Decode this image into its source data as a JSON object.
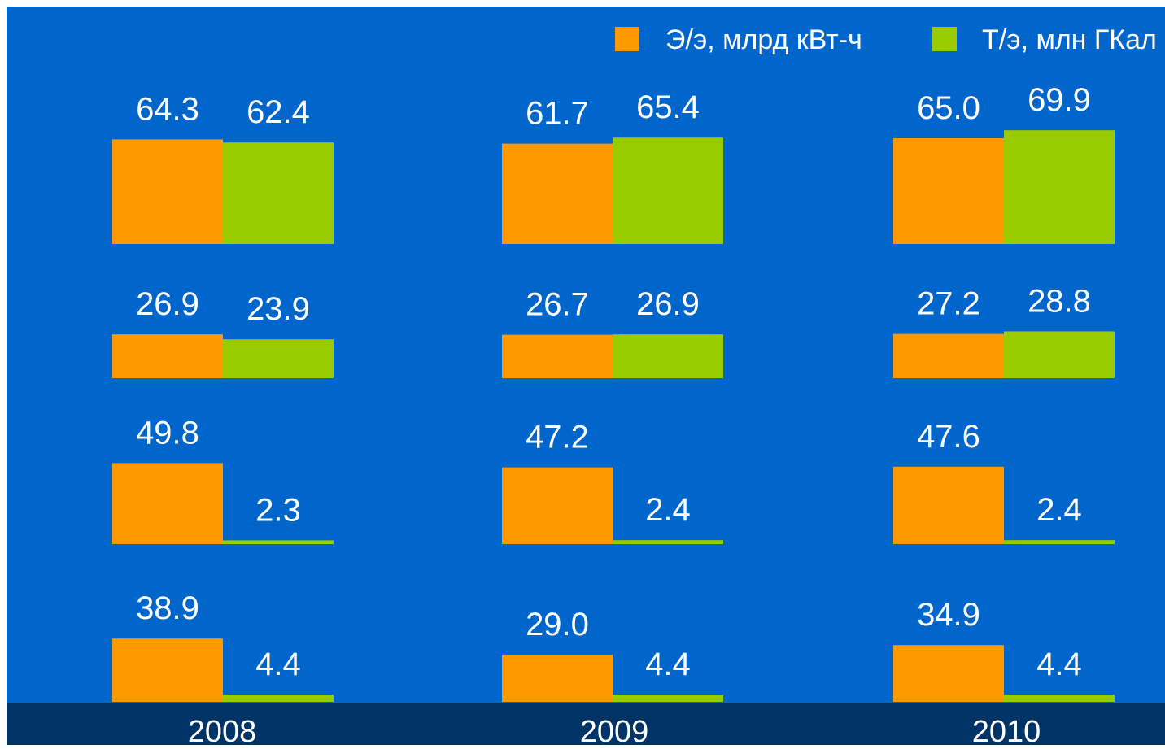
{
  "chart_data": {
    "type": "bar",
    "categories": [
      "2008",
      "2009",
      "2010"
    ],
    "legend": [
      {
        "name": "Э/э, млрд кВт-ч",
        "color": "#FF9900"
      },
      {
        "name": "Т/э, млн ГКал",
        "color": "#99CC00"
      }
    ],
    "colors": {
      "background": "#0066CC",
      "footer": "#003366",
      "label_text": "#FFFFFF"
    },
    "rows": [
      {
        "series": [
          {
            "name": "Э/э, млрд кВт-ч",
            "values": [
              64.3,
              61.7,
              65.0
            ]
          },
          {
            "name": "Т/э, млн ГКал",
            "values": [
              62.4,
              65.4,
              69.9
            ]
          }
        ]
      },
      {
        "series": [
          {
            "name": "Э/э, млрд кВт-ч",
            "values": [
              26.9,
              26.7,
              27.2
            ]
          },
          {
            "name": "Т/э, млн ГКал",
            "values": [
              23.9,
              26.9,
              28.8
            ]
          }
        ]
      },
      {
        "series": [
          {
            "name": "Э/э, млрд кВт-ч",
            "values": [
              49.8,
              47.2,
              47.6
            ]
          },
          {
            "name": "Т/э, млн ГКал",
            "values": [
              2.3,
              2.4,
              2.4
            ]
          }
        ]
      },
      {
        "series": [
          {
            "name": "Э/э, млрд кВт-ч",
            "values": [
              38.9,
              29.0,
              34.9
            ]
          },
          {
            "name": "Т/э, млн ГКал",
            "values": [
              4.4,
              4.4,
              4.4
            ]
          }
        ]
      }
    ],
    "legend_position": "top-right",
    "grid": false
  }
}
